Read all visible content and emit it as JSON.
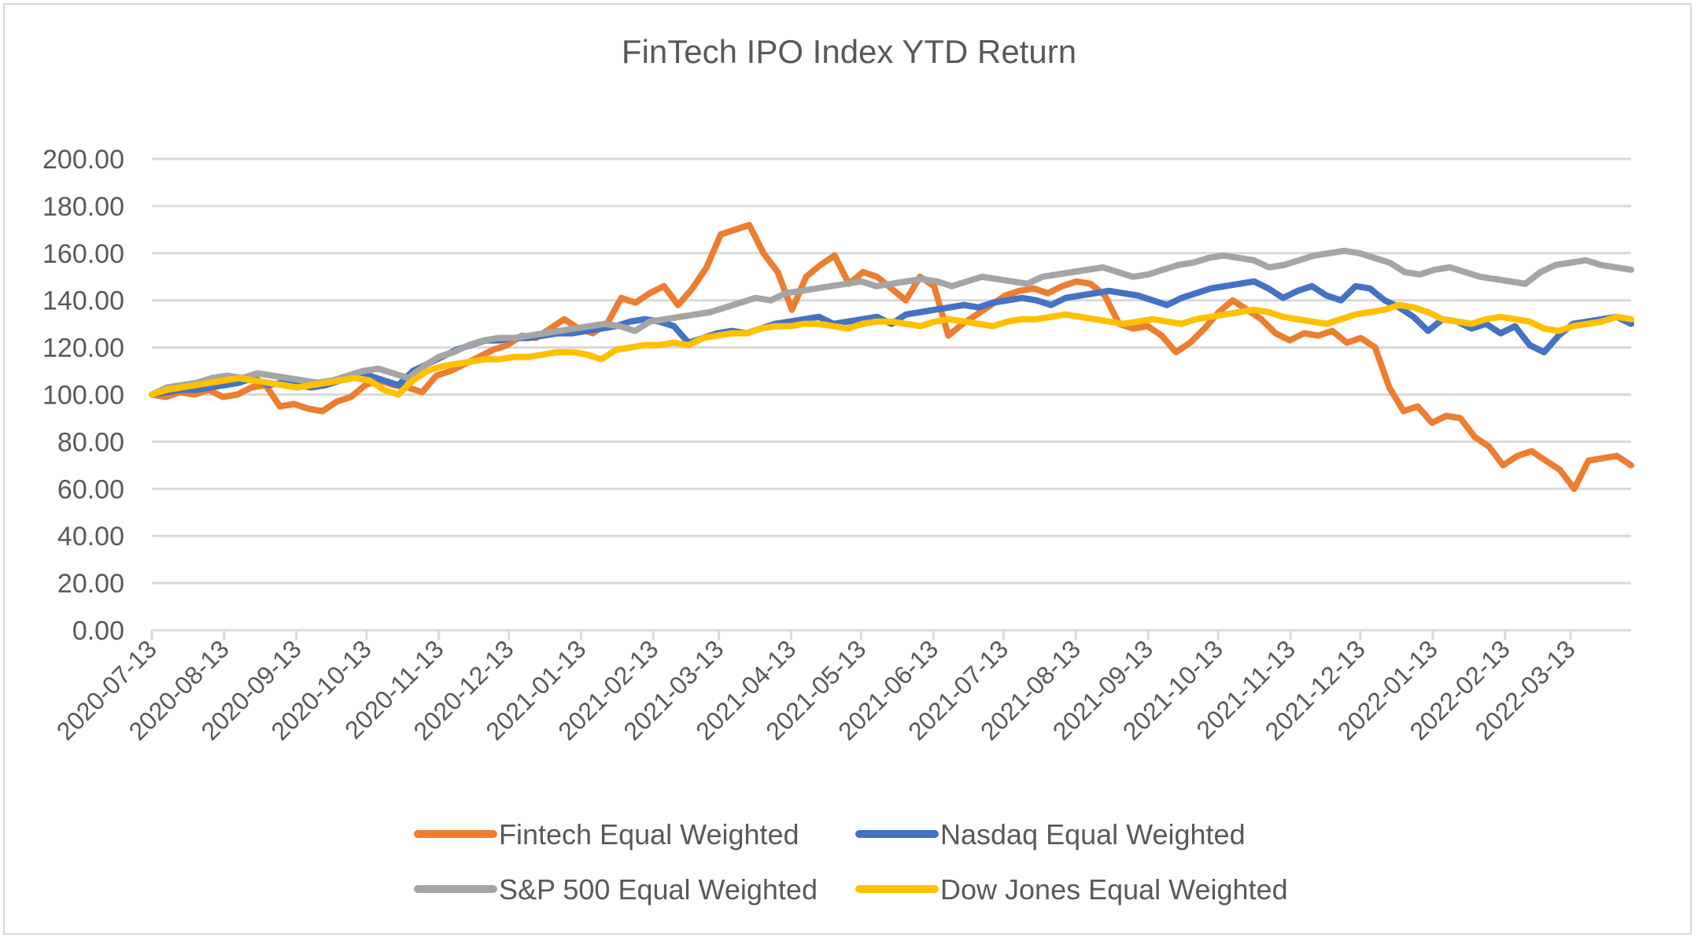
{
  "chart_data": {
    "type": "line",
    "title": "FinTech IPO Index YTD Return",
    "xlabel": "",
    "ylabel": "",
    "ylim": [
      0,
      200
    ],
    "yticks": [
      "0.00",
      "20.00",
      "40.00",
      "60.00",
      "80.00",
      "100.00",
      "120.00",
      "140.00",
      "160.00",
      "180.00",
      "200.00"
    ],
    "ytick_values": [
      0,
      20,
      40,
      60,
      80,
      100,
      120,
      140,
      160,
      180,
      200
    ],
    "xticks": [
      "2020-07-13",
      "2020-08-13",
      "2020-09-13",
      "2020-10-13",
      "2020-11-13",
      "2020-12-13",
      "2021-01-13",
      "2021-02-13",
      "2021-03-13",
      "2021-04-13",
      "2021-05-13",
      "2021-06-13",
      "2021-07-13",
      "2021-08-13",
      "2021-09-13",
      "2021-10-13",
      "2021-11-13",
      "2021-12-13",
      "2022-01-13",
      "2022-02-13",
      "2022-03-13"
    ],
    "x_range": [
      "2020-07-13",
      "2022-04-08"
    ],
    "grid": true,
    "legend_position": "bottom",
    "x_step": "weekly",
    "x_start": "2020-07-13",
    "series": [
      {
        "name": "Fintech Equal Weighted",
        "color": "#ED7D31",
        "values": [
          100,
          99,
          101,
          100,
          102,
          99,
          100,
          103,
          104,
          95,
          96,
          94,
          93,
          97,
          99,
          104,
          106,
          104,
          103,
          101,
          108,
          110,
          113,
          116,
          119,
          121,
          125,
          124,
          128,
          132,
          128,
          126,
          130,
          141,
          139,
          143,
          146,
          138,
          145,
          154,
          168,
          170,
          172,
          160,
          152,
          136,
          150,
          155,
          159,
          147,
          152,
          150,
          145,
          140,
          150,
          146,
          125,
          130,
          134,
          138,
          142,
          144,
          145,
          143,
          146,
          148,
          147,
          142,
          130,
          128,
          129,
          125,
          118,
          122,
          128,
          135,
          140,
          136,
          132,
          126,
          123,
          126,
          125,
          127,
          122,
          124,
          120,
          103,
          93,
          95,
          88,
          91,
          90,
          82,
          78,
          70,
          74,
          76,
          72,
          68,
          60,
          72,
          73,
          74,
          70
        ]
      },
      {
        "name": "Nasdaq Equal Weighted",
        "color": "#4472C4",
        "values": [
          100,
          101,
          102,
          102,
          103,
          104,
          105,
          107,
          104,
          105,
          104,
          103,
          104,
          106,
          108,
          108,
          106,
          104,
          110,
          113,
          116,
          119,
          121,
          123,
          123,
          124,
          124,
          125,
          126,
          126,
          127,
          128,
          129,
          131,
          132,
          131,
          129,
          122,
          124,
          126,
          127,
          126,
          128,
          130,
          131,
          132,
          133,
          130,
          131,
          132,
          133,
          130,
          134,
          135,
          136,
          137,
          138,
          137,
          139,
          140,
          141,
          140,
          138,
          141,
          142,
          143,
          144,
          143,
          142,
          140,
          138,
          141,
          143,
          145,
          146,
          147,
          148,
          145,
          141,
          144,
          146,
          142,
          140,
          146,
          145,
          140,
          137,
          133,
          127,
          132,
          131,
          128,
          130,
          126,
          129,
          121,
          118,
          125,
          130,
          131,
          132,
          133,
          130
        ]
      },
      {
        "name": "S&P 500 Equal Weighted",
        "color": "#A5A5A5",
        "values": [
          100,
          103,
          104,
          105,
          107,
          108,
          107,
          109,
          108,
          107,
          106,
          105,
          106,
          108,
          110,
          111,
          109,
          107,
          112,
          116,
          118,
          121,
          123,
          124,
          124,
          125,
          126,
          127,
          128,
          129,
          130,
          129,
          127,
          131,
          132,
          133,
          134,
          135,
          137,
          139,
          141,
          140,
          143,
          144,
          145,
          146,
          147,
          148,
          146,
          147,
          148,
          149,
          148,
          146,
          148,
          150,
          149,
          148,
          147,
          150,
          151,
          152,
          153,
          154,
          152,
          150,
          151,
          153,
          155,
          156,
          158,
          159,
          158,
          157,
          154,
          155,
          157,
          159,
          160,
          161,
          160,
          158,
          156,
          152,
          151,
          153,
          154,
          152,
          150,
          149,
          148,
          147,
          152,
          155,
          156,
          157,
          155,
          154,
          153
        ]
      },
      {
        "name": "Dow Jones Equal Weighted",
        "color": "#FFC000",
        "values": [
          100,
          102,
          103,
          104,
          105,
          106,
          107,
          106,
          105,
          104,
          103,
          104,
          105,
          106,
          107,
          106,
          102,
          100,
          106,
          110,
          112,
          113,
          114,
          115,
          115,
          116,
          116,
          117,
          118,
          118,
          117,
          115,
          119,
          120,
          121,
          121,
          122,
          121,
          124,
          125,
          126,
          126,
          128,
          129,
          129,
          130,
          130,
          129,
          128,
          130,
          131,
          131,
          130,
          129,
          131,
          132,
          131,
          130,
          129,
          131,
          132,
          132,
          133,
          134,
          133,
          132,
          131,
          130,
          131,
          132,
          131,
          130,
          132,
          133,
          134,
          135,
          136,
          135,
          133,
          132,
          131,
          130,
          132,
          134,
          135,
          136,
          138,
          137,
          135,
          132,
          131,
          130,
          132,
          133,
          132,
          131,
          128,
          127,
          129,
          130,
          131,
          133,
          132
        ]
      }
    ]
  },
  "legend": [
    {
      "label": "Fintech Equal Weighted",
      "color": "#ED7D31"
    },
    {
      "label": "Nasdaq Equal Weighted",
      "color": "#4472C4"
    },
    {
      "label": "S&P 500 Equal Weighted",
      "color": "#A5A5A5"
    },
    {
      "label": "Dow Jones Equal Weighted",
      "color": "#FFC000"
    }
  ]
}
